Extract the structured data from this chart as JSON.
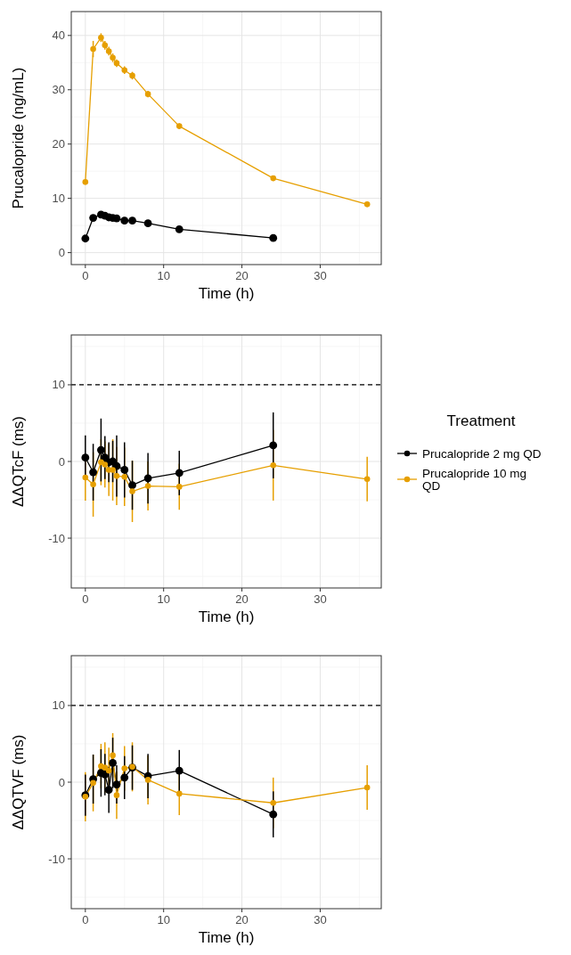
{
  "chart_data": [
    {
      "type": "line",
      "xlabel": "Time (h)",
      "ylabel": "Prucalopride (ng/mL)",
      "xlim": [
        -1.8,
        37.8
      ],
      "xticks": [
        0,
        10,
        20,
        30
      ],
      "ylim": [
        -2.2,
        44.4
      ],
      "yticks": [
        0,
        10,
        20,
        30,
        40
      ],
      "grid": true,
      "marker": "circle",
      "line_style": "solid",
      "legend": false,
      "series": [
        {
          "color": "#000000",
          "x": [
            0,
            1,
            2,
            2.5,
            3,
            3.5,
            4,
            5,
            6,
            8,
            12,
            24
          ],
          "values": [
            2.6,
            6.4,
            7.0,
            6.8,
            6.5,
            6.4,
            6.3,
            5.9,
            5.9,
            5.4,
            4.3,
            2.7
          ],
          "errors": [
            0.3,
            0.4,
            0.4,
            0.4,
            0.4,
            0.3,
            0.3,
            0.3,
            0.3,
            0.3,
            0.3,
            0.3
          ]
        },
        {
          "color": "#e69f00",
          "x": [
            0,
            1,
            2,
            2.5,
            3,
            3.5,
            4,
            5,
            6,
            8,
            12,
            24,
            36
          ],
          "values": [
            13.0,
            37.5,
            39.6,
            38.2,
            37.1,
            35.9,
            34.9,
            33.6,
            32.6,
            29.2,
            23.3,
            13.7,
            8.9
          ],
          "errors": [
            0.3,
            1.5,
            0.8,
            0.8,
            0.8,
            0.8,
            0.7,
            0.7,
            0.7,
            0.6,
            0.5,
            0.5,
            0.4
          ]
        }
      ]
    },
    {
      "type": "line",
      "xlabel": "Time (h)",
      "ylabel": "ΔΔQTcF (ms)",
      "xlim": [
        -1.8,
        37.8
      ],
      "xticks": [
        0,
        10,
        20,
        30
      ],
      "ylim": [
        -16.5,
        16.5
      ],
      "yticks": [
        -10,
        0,
        10
      ],
      "grid": true,
      "marker": "circle",
      "line_style": "solid",
      "legend": "right",
      "legend_title": "Treatment",
      "ref_lines": [
        {
          "axis": "y",
          "value": 10,
          "color": "#000000",
          "line_style": "dashed"
        }
      ],
      "series": [
        {
          "name": "Prucalopride 2 mg QD",
          "color": "#000000",
          "x": [
            0,
            1,
            2,
            2.5,
            3,
            3.5,
            4,
            5,
            6,
            8,
            12,
            24
          ],
          "values": [
            0.5,
            -1.4,
            1.5,
            0.5,
            -0.1,
            0,
            -0.6,
            -1.1,
            -3.1,
            -2.2,
            -1.5,
            2.1
          ],
          "errors": [
            2.9,
            3.7,
            4.1,
            2.8,
            2.6,
            2.7,
            4,
            3.6,
            3.2,
            3.3,
            2.9,
            4.3
          ]
        },
        {
          "name": "Prucalopride 10 mg QD",
          "color": "#e69f00",
          "x": [
            0,
            1,
            2,
            2.5,
            3,
            3.5,
            4,
            5,
            6,
            8,
            12,
            24,
            36
          ],
          "values": [
            -2.1,
            -3.0,
            -0.1,
            -0.4,
            -1.1,
            -1.1,
            -1.9,
            -2.0,
            -3.9,
            -3.2,
            -3.3,
            -0.5,
            -2.3
          ],
          "errors": [
            3,
            4.2,
            3,
            3,
            3.4,
            4,
            3.8,
            3.8,
            4,
            3.2,
            3,
            4.6,
            2.9
          ]
        }
      ]
    },
    {
      "type": "line",
      "xlabel": "Time (h)",
      "ylabel": "ΔΔQTVF (ms)",
      "xlim": [
        -1.8,
        37.8
      ],
      "xticks": [
        0,
        10,
        20,
        30
      ],
      "ylim": [
        -16.5,
        16.5
      ],
      "yticks": [
        -10,
        0,
        10
      ],
      "grid": true,
      "marker": "circle",
      "line_style": "solid",
      "legend": false,
      "ref_lines": [
        {
          "axis": "y",
          "value": 10,
          "color": "#000000",
          "line_style": "dashed"
        }
      ],
      "series": [
        {
          "color": "#000000",
          "x": [
            0,
            1,
            2,
            2.5,
            3,
            3.5,
            4,
            5,
            6,
            8,
            12,
            24
          ],
          "values": [
            -1.7,
            0.4,
            1.2,
            1.0,
            -1.0,
            2.5,
            -0.3,
            0.6,
            1.9,
            0.8,
            1.5,
            -4.2
          ],
          "errors": [
            2.7,
            3.2,
            3.1,
            2.7,
            3,
            3.3,
            2.5,
            2.8,
            2.9,
            2.9,
            2.7,
            3
          ]
        },
        {
          "color": "#e69f00",
          "x": [
            0,
            1,
            2,
            2.5,
            3,
            3.5,
            4,
            5,
            6,
            8,
            12,
            24,
            36
          ],
          "values": [
            -1.9,
            -0.1,
            2.1,
            1.9,
            1.5,
            3.5,
            -1.7,
            1.8,
            2.0,
            0.3,
            -1.5,
            -2.7,
            -0.7
          ],
          "errors": [
            3.2,
            3.7,
            2.9,
            3.3,
            3,
            2.9,
            3.1,
            2.9,
            3.2,
            3.2,
            2.8,
            3.3,
            2.9
          ]
        }
      ]
    }
  ]
}
